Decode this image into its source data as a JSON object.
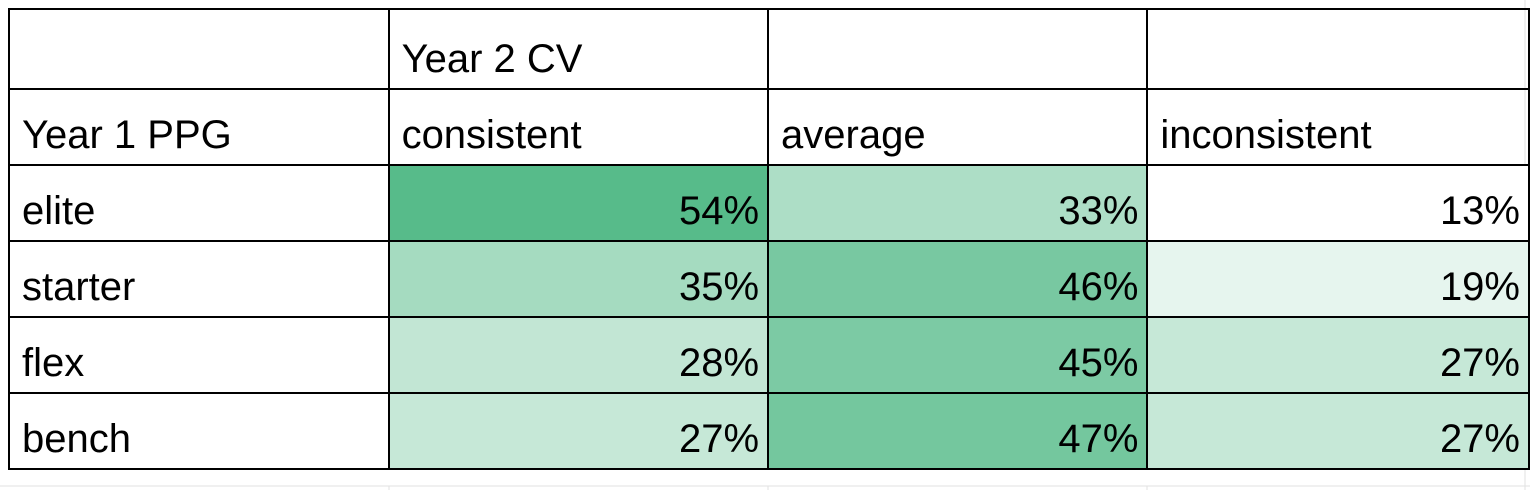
{
  "colors": {
    "scale_low": "#ffffff",
    "scale_high": "#57bb8a",
    "border": "#000000",
    "text": "#000000"
  },
  "chart_data": {
    "type": "table",
    "row_header_label": "Year 1 PPG",
    "column_group_label": "Year 2 CV",
    "columns": [
      "consistent",
      "average",
      "inconsistent"
    ],
    "rows": [
      {
        "label": "elite",
        "values": [
          "54%",
          "33%",
          "13%"
        ],
        "numeric": [
          54,
          33,
          13
        ]
      },
      {
        "label": "starter",
        "values": [
          "35%",
          "46%",
          "19%"
        ],
        "numeric": [
          35,
          46,
          19
        ]
      },
      {
        "label": "flex",
        "values": [
          "28%",
          "45%",
          "27%"
        ],
        "numeric": [
          28,
          45,
          27
        ]
      },
      {
        "label": "bench",
        "values": [
          "27%",
          "47%",
          "27%"
        ],
        "numeric": [
          27,
          47,
          27
        ]
      }
    ],
    "color_scale": {
      "min": 13,
      "max": 54
    }
  }
}
